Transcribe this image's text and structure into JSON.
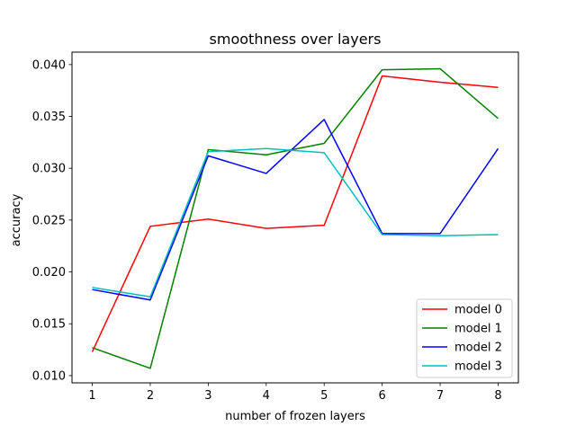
{
  "chart_data": {
    "type": "line",
    "title": "smoothness over layers",
    "xlabel": "number of frozen layers",
    "ylabel": "accuracy",
    "x": [
      1,
      2,
      3,
      4,
      5,
      6,
      7,
      8
    ],
    "xlim": [
      0.65,
      8.35
    ],
    "ylim": [
      0.0093,
      0.0412
    ],
    "xticks": [
      1,
      2,
      3,
      4,
      5,
      6,
      7,
      8
    ],
    "yticks": [
      0.01,
      0.015,
      0.02,
      0.025,
      0.03,
      0.035,
      0.04
    ],
    "ytick_labels": [
      "0.010",
      "0.015",
      "0.020",
      "0.025",
      "0.030",
      "0.035",
      "0.040"
    ],
    "grid": false,
    "legend_position": "lower-right",
    "series": [
      {
        "name": "model 0",
        "color": "#ff0000",
        "values": [
          0.0123,
          0.0244,
          0.0251,
          0.0242,
          0.0245,
          0.0389,
          0.0383,
          0.0378
        ]
      },
      {
        "name": "model 1",
        "color": "#008000",
        "values": [
          0.0127,
          0.0107,
          0.0318,
          0.0313,
          0.0324,
          0.0395,
          0.0396,
          0.0348
        ]
      },
      {
        "name": "model 2",
        "color": "#0000ff",
        "values": [
          0.0183,
          0.0173,
          0.0312,
          0.0295,
          0.0347,
          0.0237,
          0.0237,
          0.0319
        ]
      },
      {
        "name": "model 3",
        "color": "#00bfbf",
        "values": [
          0.0185,
          0.0176,
          0.0316,
          0.0319,
          0.0315,
          0.0236,
          0.0235,
          0.0236
        ]
      }
    ]
  }
}
